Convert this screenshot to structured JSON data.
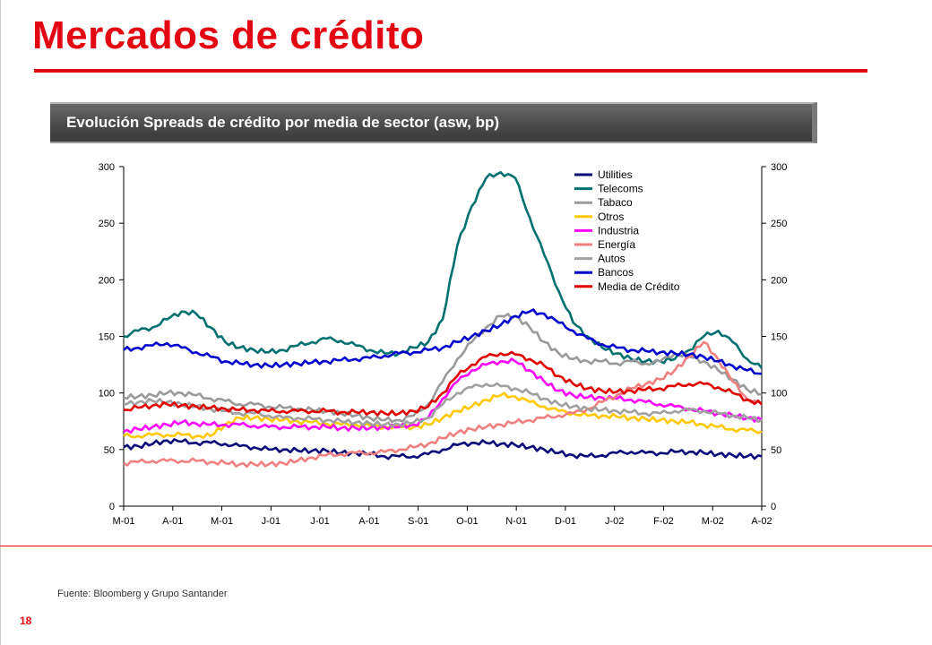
{
  "page": {
    "title": "Mercados de crédito",
    "source": "Fuente: Bloomberg y Grupo Santander",
    "page_number": "18"
  },
  "chart_data": {
    "type": "line",
    "title": "Evolución Spreads de crédito por media de sector (asw, bp)",
    "ylim": [
      0,
      300
    ],
    "y_ticks": [
      0,
      50,
      100,
      150,
      200,
      250,
      300
    ],
    "y_ticks_right": [
      0,
      50,
      100,
      150,
      200,
      250,
      300
    ],
    "x_tick_labels": [
      "M-01",
      "A-01",
      "M-01",
      "J-01",
      "J-01",
      "A-01",
      "S-01",
      "O-01",
      "N-01",
      "D-01",
      "J-02",
      "F-02",
      "M-02",
      "A-02"
    ],
    "legend_position": "top-right",
    "series": [
      {
        "name": "Utilities",
        "color": "#0a0a78",
        "values": [
          52,
          53,
          55,
          58,
          57,
          56,
          56,
          55,
          53,
          52,
          50,
          50,
          49,
          49,
          49,
          47,
          47,
          46,
          44,
          44,
          44,
          46,
          50,
          54,
          56,
          56,
          55,
          54,
          52,
          50,
          47,
          45,
          44,
          45,
          47,
          48,
          47,
          47,
          48,
          48,
          47,
          46,
          45,
          44,
          44
        ]
      },
      {
        "name": "Telecoms",
        "color": "#007070",
        "values": [
          150,
          155,
          158,
          165,
          172,
          170,
          158,
          145,
          140,
          138,
          136,
          138,
          142,
          145,
          148,
          146,
          142,
          138,
          135,
          135,
          140,
          145,
          165,
          230,
          265,
          290,
          295,
          290,
          255,
          222,
          190,
          162,
          150,
          140,
          135,
          130,
          128,
          128,
          130,
          138,
          150,
          155,
          145,
          130,
          122
        ]
      },
      {
        "name": "Tabaco",
        "color": "#9a9a9a",
        "values": [
          96,
          97,
          98,
          100,
          100,
          98,
          95,
          93,
          90,
          90,
          88,
          87,
          86,
          85,
          84,
          82,
          80,
          78,
          76,
          76,
          80,
          90,
          110,
          130,
          145,
          158,
          168,
          168,
          158,
          145,
          135,
          130,
          128,
          128,
          126,
          128,
          126,
          128,
          135,
          132,
          128,
          120,
          112,
          103,
          99
        ]
      },
      {
        "name": "Otros",
        "color": "#ffc800",
        "values": [
          62,
          62,
          63,
          63,
          63,
          62,
          62,
          72,
          78,
          78,
          77,
          76,
          75,
          74,
          73,
          72,
          72,
          71,
          70,
          70,
          70,
          72,
          78,
          84,
          88,
          94,
          98,
          97,
          92,
          88,
          84,
          82,
          80,
          80,
          79,
          78,
          77,
          76,
          75,
          74,
          72,
          70,
          68,
          67,
          66
        ]
      },
      {
        "name": "Industria",
        "color": "#ff00ff",
        "values": [
          66,
          68,
          70,
          72,
          74,
          73,
          72,
          72,
          72,
          71,
          70,
          70,
          70,
          70,
          70,
          69,
          69,
          69,
          70,
          70,
          72,
          78,
          95,
          110,
          120,
          125,
          128,
          128,
          120,
          110,
          102,
          98,
          96,
          96,
          95,
          94,
          92,
          90,
          88,
          86,
          84,
          82,
          80,
          78,
          76
        ]
      },
      {
        "name": "Energía",
        "color": "#f08080",
        "values": [
          38,
          39,
          40,
          40,
          40,
          40,
          39,
          38,
          37,
          37,
          37,
          38,
          40,
          43,
          45,
          46,
          47,
          47,
          48,
          50,
          52,
          55,
          60,
          65,
          68,
          70,
          72,
          74,
          76,
          78,
          80,
          82,
          86,
          92,
          98,
          104,
          108,
          112,
          120,
          132,
          145,
          130,
          110,
          95,
          90
        ]
      },
      {
        "name": "Autos",
        "color": "#a0a0a0",
        "values": [
          90,
          92,
          93,
          92,
          90,
          88,
          86,
          84,
          82,
          82,
          80,
          78,
          78,
          77,
          76,
          75,
          74,
          73,
          72,
          72,
          74,
          78,
          90,
          100,
          105,
          108,
          106,
          104,
          100,
          95,
          90,
          88,
          86,
          85,
          84,
          83,
          82,
          82,
          84,
          85,
          84,
          82,
          80,
          78,
          76
        ]
      },
      {
        "name": "Bancos",
        "color": "#0000cc",
        "values": [
          138,
          140,
          142,
          144,
          140,
          136,
          132,
          128,
          126,
          125,
          124,
          125,
          126,
          127,
          128,
          129,
          130,
          131,
          133,
          135,
          136,
          138,
          140,
          145,
          150,
          155,
          160,
          168,
          172,
          170,
          162,
          155,
          148,
          143,
          140,
          138,
          137,
          136,
          135,
          134,
          132,
          128,
          124,
          120,
          117
        ]
      },
      {
        "name": "Media de Crédito",
        "color": "#e00000",
        "values": [
          85,
          87,
          89,
          90,
          89,
          88,
          87,
          86,
          85,
          85,
          84,
          84,
          84,
          84,
          84,
          83,
          83,
          83,
          82,
          82,
          84,
          88,
          100,
          115,
          125,
          132,
          135,
          134,
          130,
          124,
          115,
          108,
          104,
          102,
          101,
          102,
          103,
          104,
          106,
          108,
          108,
          105,
          100,
          94,
          90
        ]
      }
    ]
  }
}
